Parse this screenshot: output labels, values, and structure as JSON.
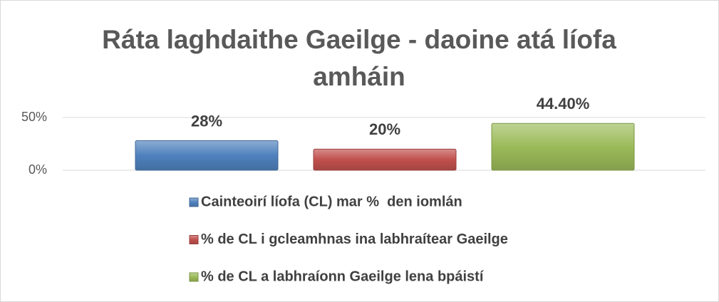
{
  "chart_data": {
    "type": "bar",
    "title": "Ráta laghdaithe Gaeilge - daoine atá líofa amháin",
    "series": [
      {
        "name": "Cainteoirí líofa (CL) mar %  den iomlán",
        "color": "#4f81bd",
        "values": [
          28
        ],
        "value_labels": [
          "28%"
        ]
      },
      {
        "name": "% de CL i gcleamhnas ina labhraítear Gaeilge",
        "color": "#c0504d",
        "values": [
          20
        ],
        "value_labels": [
          "20%"
        ]
      },
      {
        "name": "% de CL a labhraíonn Gaeilge lena bpáistí",
        "color": "#9bbb59",
        "values": [
          44.4
        ],
        "value_labels": [
          "44.40%"
        ]
      }
    ],
    "ylim": [
      0,
      50
    ],
    "yticks": [
      {
        "value": 0,
        "label": "0%"
      },
      {
        "value": 50,
        "label": "50%"
      }
    ],
    "grid": true,
    "legend": "bottom"
  }
}
